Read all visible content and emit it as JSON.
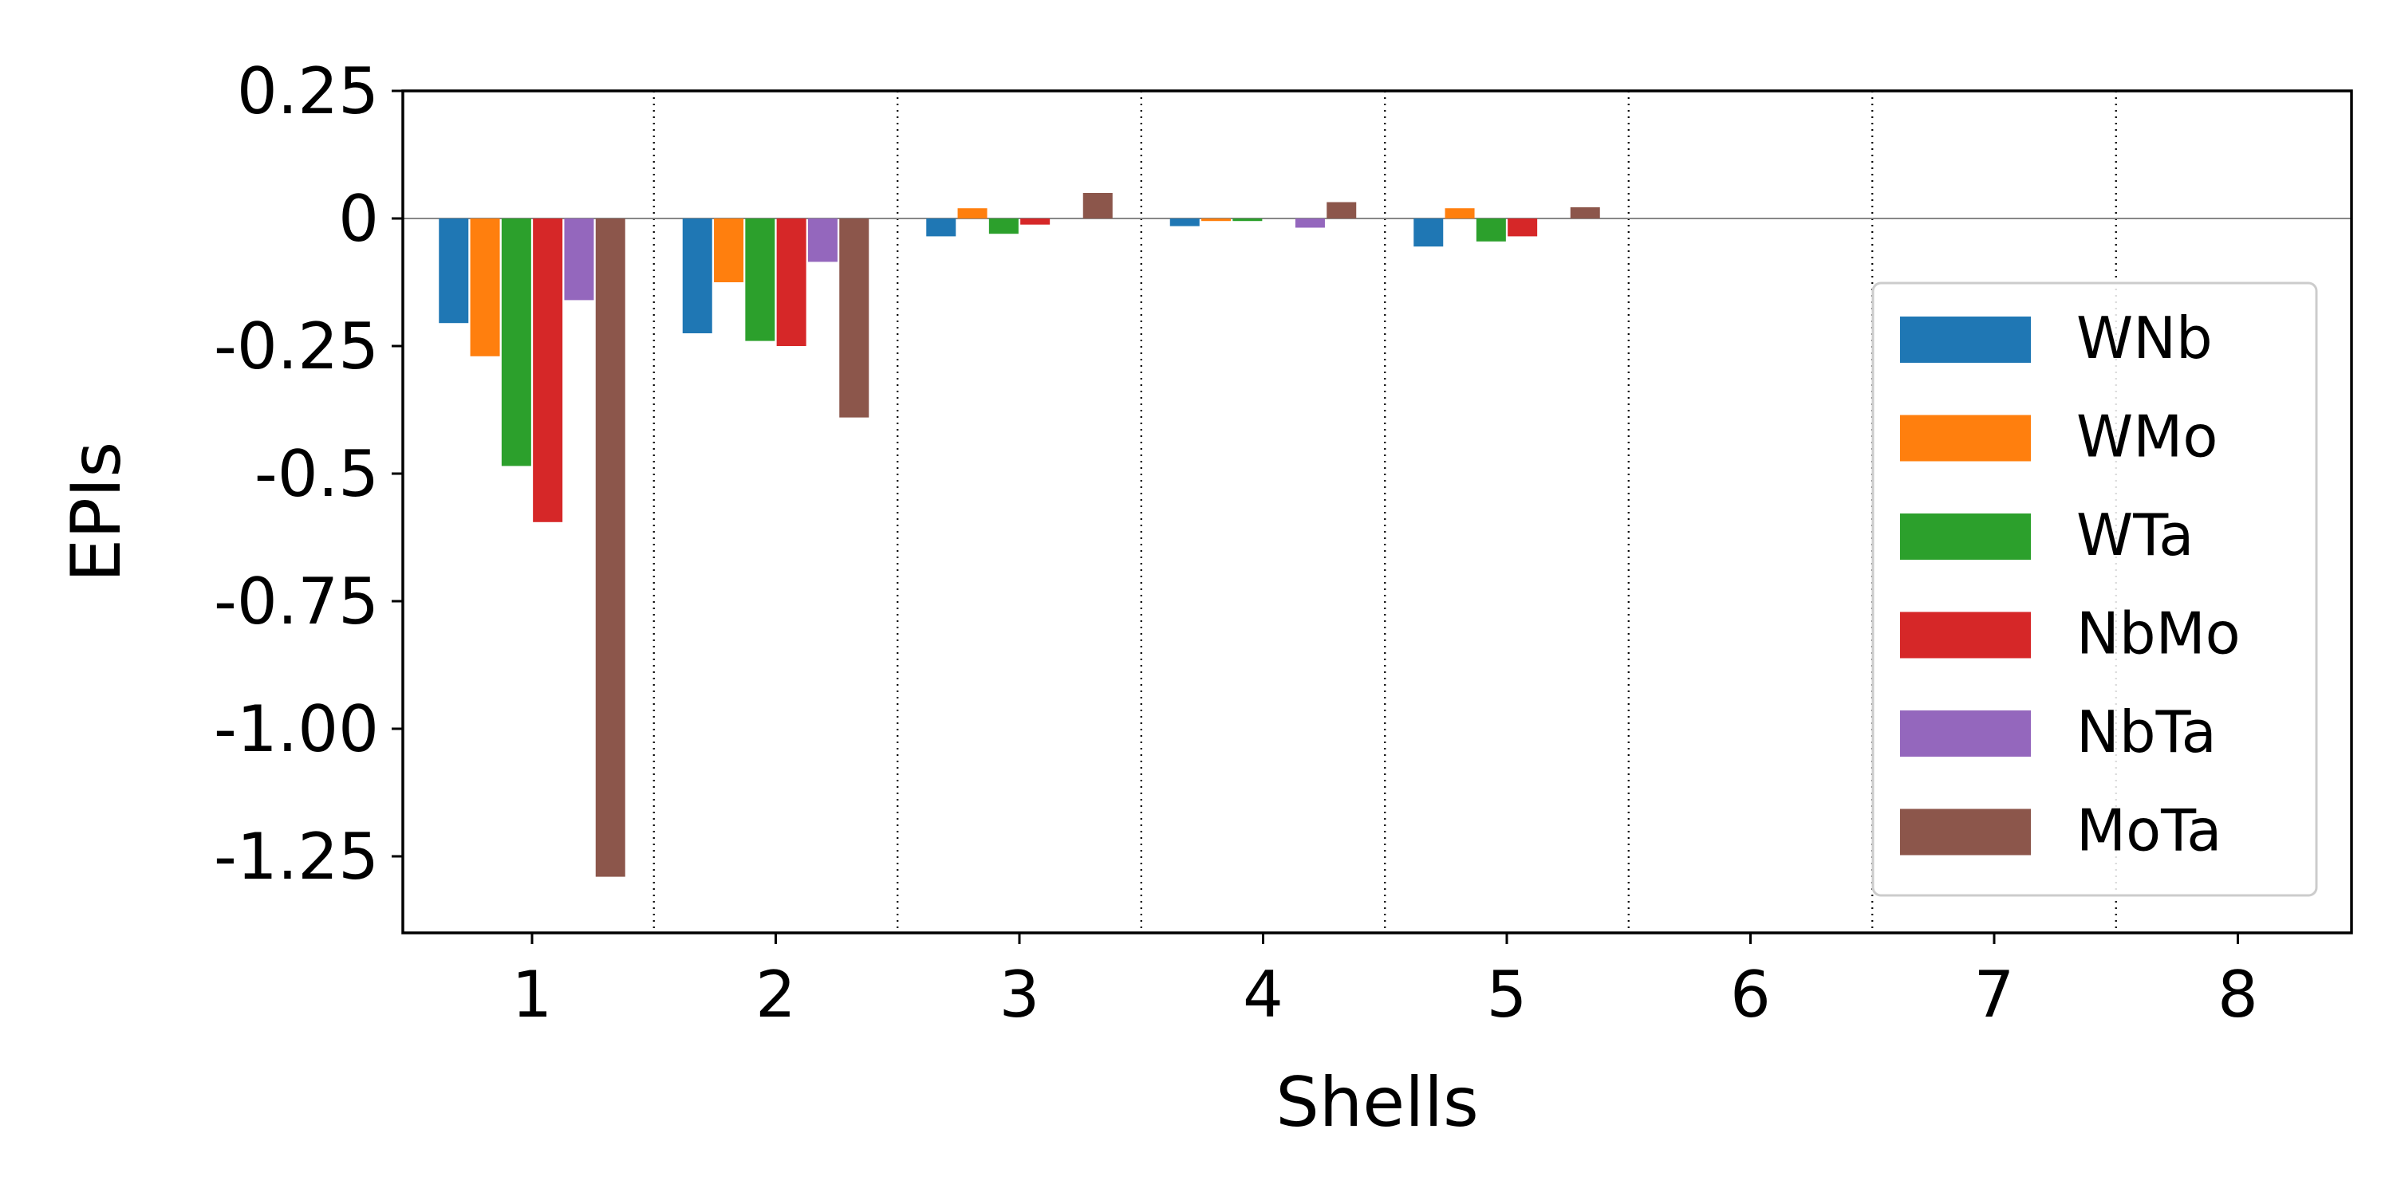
{
  "chart_data": {
    "type": "bar",
    "title": "",
    "xlabel": "Shells",
    "ylabel": "EPIs",
    "categories": [
      "1",
      "2",
      "3",
      "4",
      "5",
      "6",
      "7",
      "8"
    ],
    "ylim": [
      -1.4,
      0.25
    ],
    "yticks": [
      0.25,
      0,
      -0.25,
      -0.5,
      -0.75,
      -1.0,
      -1.25
    ],
    "ytick_labels": [
      "0.25",
      "0",
      "-0.25",
      "-0.5",
      "-0.75",
      "-1.00",
      "-1.25"
    ],
    "grid": "vertical dotted separators between shells",
    "zero_line": true,
    "legend_position": "right",
    "series": [
      {
        "name": "WNb",
        "color": "#1f77b4",
        "values": [
          -0.205,
          -0.225,
          -0.035,
          -0.015,
          -0.055,
          0,
          0,
          0
        ]
      },
      {
        "name": "WMo",
        "color": "#ff7f0e",
        "values": [
          -0.27,
          -0.125,
          0.02,
          -0.005,
          0.02,
          0,
          0,
          0
        ]
      },
      {
        "name": "WTa",
        "color": "#2ca02c",
        "values": [
          -0.485,
          -0.24,
          -0.03,
          -0.005,
          -0.045,
          0,
          0,
          0
        ]
      },
      {
        "name": "NbMo",
        "color": "#d62728",
        "values": [
          -0.595,
          -0.25,
          -0.012,
          0,
          -0.035,
          0,
          0,
          0
        ]
      },
      {
        "name": "NbTa",
        "color": "#9467bd",
        "values": [
          -0.16,
          -0.085,
          0,
          -0.018,
          0,
          0,
          0,
          0
        ]
      },
      {
        "name": "MoTa",
        "color": "#8c564b",
        "values": [
          -1.29,
          -0.39,
          0.05,
          0.032,
          0.022,
          0,
          0,
          0
        ]
      }
    ]
  }
}
